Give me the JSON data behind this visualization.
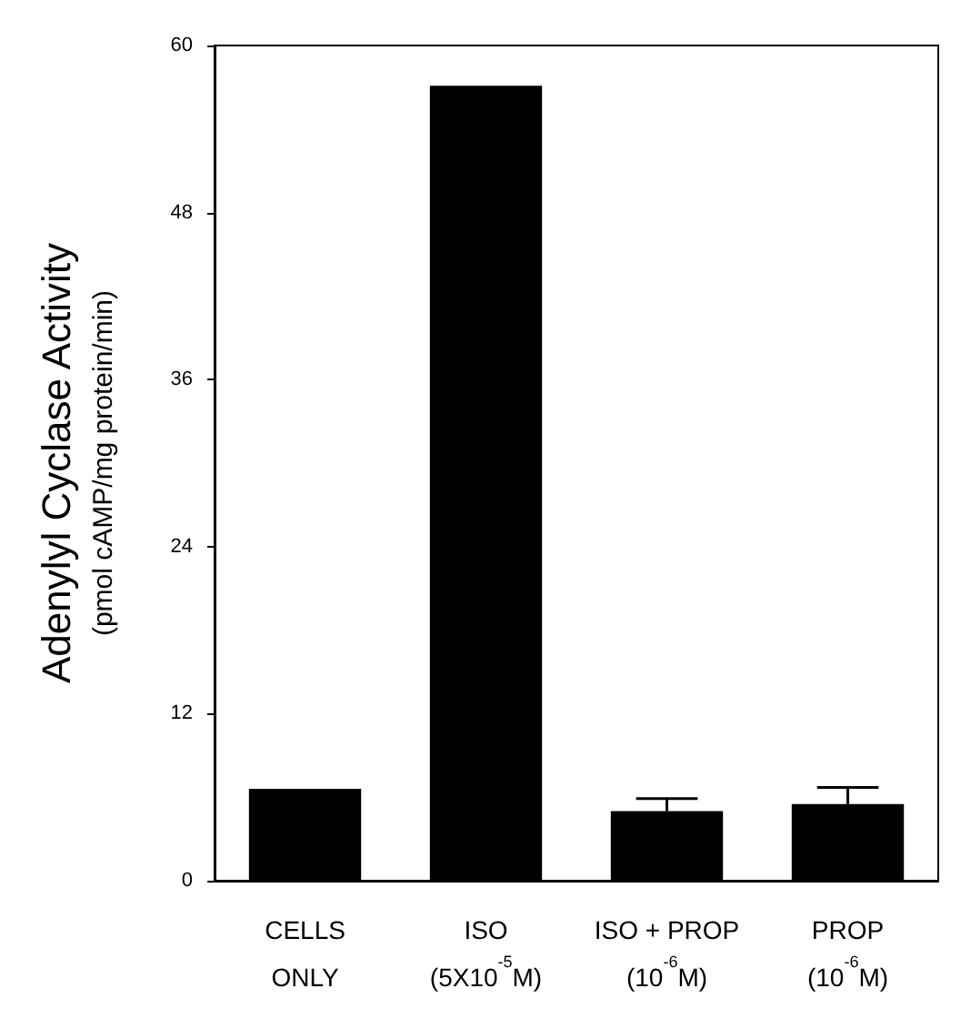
{
  "chart_data": {
    "type": "bar",
    "ylabel": "Adenylyl Cyclase Activity\n(pmol cAMP/mg protein/min)",
    "categories": [
      "CELLS\nONLY",
      "ISO\n(5X10$^{-5}$M)",
      "ISO + PROP\n(10$^{-6}$M)",
      "PROP\n(10$^{-6}$M)"
    ],
    "values": [
      6.6,
      57.1,
      5.0,
      5.5
    ],
    "errors": [
      null,
      null,
      [
        5.0,
        5.9
      ],
      [
        5.5,
        6.7
      ]
    ],
    "color": "#000000",
    "ylim": [
      0,
      60
    ],
    "yticks": [
      0,
      12,
      24,
      36,
      48,
      60
    ],
    "grid": false
  }
}
